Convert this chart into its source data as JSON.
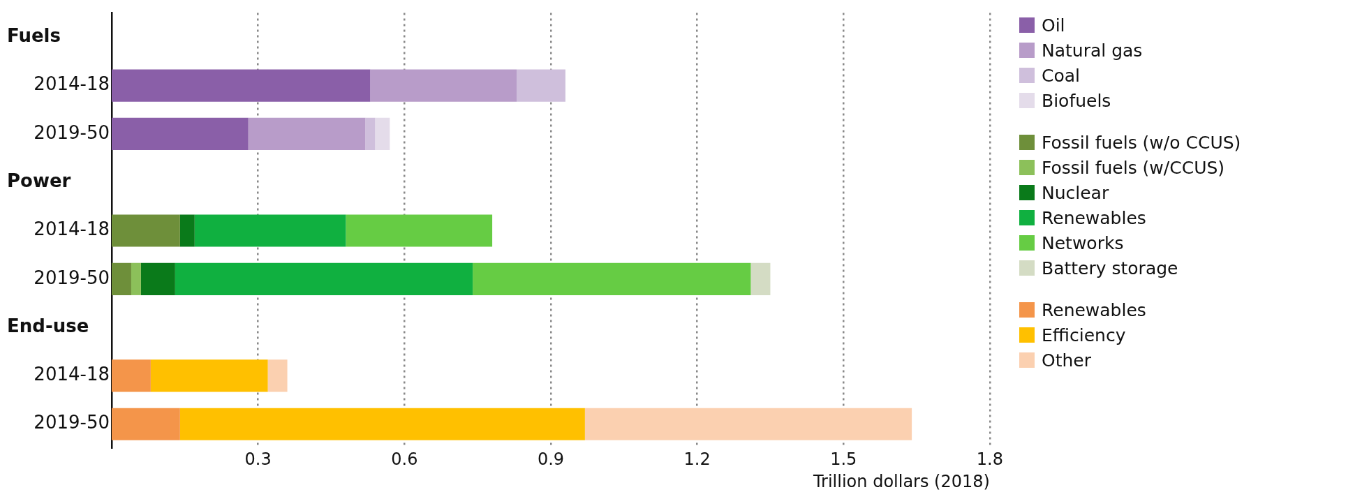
{
  "chart_data": {
    "type": "bar",
    "orientation": "horizontal",
    "stacked": true,
    "categories": [
      null,
      "2014-18",
      "2019-50",
      null,
      "2014-18",
      "2019-50",
      null,
      "2014-18",
      "2019-50"
    ],
    "annotations": [
      "Fuels",
      "Power",
      "End-use"
    ],
    "xlabel": "Trillion dollars (2018)",
    "xlim": [
      0,
      1.8
    ],
    "xticks": [
      0.3,
      0.6,
      0.9,
      1.2,
      1.5,
      1.8
    ],
    "grid": "x",
    "legend": "right",
    "series": [
      {
        "name": "Oil",
        "color": "#8a5fa8",
        "values": [
          null,
          0.53,
          0.28,
          null,
          null,
          null,
          null,
          null,
          null
        ]
      },
      {
        "name": "Natural gas",
        "color": "#b89cc9",
        "values": [
          null,
          0.3,
          0.24,
          null,
          null,
          null,
          null,
          null,
          null
        ]
      },
      {
        "name": "Coal",
        "color": "#cfbfdc",
        "values": [
          null,
          0.1,
          0.02,
          null,
          null,
          null,
          null,
          null,
          null
        ]
      },
      {
        "name": "Biofuels",
        "color": "#e4dcea",
        "values": [
          null,
          0,
          0.03,
          null,
          null,
          null,
          null,
          null,
          null
        ]
      },
      {
        "name": "Fossil fuels (w/o CCUS)",
        "color": "#6e8f3a",
        "values": [
          null,
          null,
          null,
          null,
          0.14,
          0.04,
          null,
          null,
          null
        ]
      },
      {
        "name": "Fossil fuels (w/CCUS)",
        "color": "#8cc05a",
        "values": [
          null,
          null,
          null,
          null,
          0,
          0.02,
          null,
          null,
          null
        ]
      },
      {
        "name": "Nuclear",
        "color": "#0a7a1a",
        "values": [
          null,
          null,
          null,
          null,
          0.03,
          0.07,
          null,
          null,
          null
        ]
      },
      {
        "name": "Renewables",
        "color": "#10b040",
        "values": [
          null,
          null,
          null,
          null,
          0.31,
          0.61,
          null,
          null,
          null
        ]
      },
      {
        "name": "Networks",
        "color": "#66cc44",
        "values": [
          null,
          null,
          null,
          null,
          0.3,
          0.57,
          null,
          null,
          null
        ]
      },
      {
        "name": "Battery storage",
        "color": "#d4dcc4",
        "values": [
          null,
          null,
          null,
          null,
          0,
          0.04,
          null,
          null,
          null
        ]
      },
      {
        "name": "Renewables",
        "color": "#f4954a",
        "values": [
          null,
          null,
          null,
          null,
          null,
          null,
          null,
          0.08,
          0.14
        ]
      },
      {
        "name": "Efficiency",
        "color": "#ffc000",
        "values": [
          null,
          null,
          null,
          null,
          null,
          null,
          null,
          0.24,
          0.83
        ]
      },
      {
        "name": "Other",
        "color": "#fbd0b0",
        "values": [
          null,
          null,
          null,
          null,
          null,
          null,
          null,
          0.04,
          0.67
        ]
      }
    ]
  }
}
